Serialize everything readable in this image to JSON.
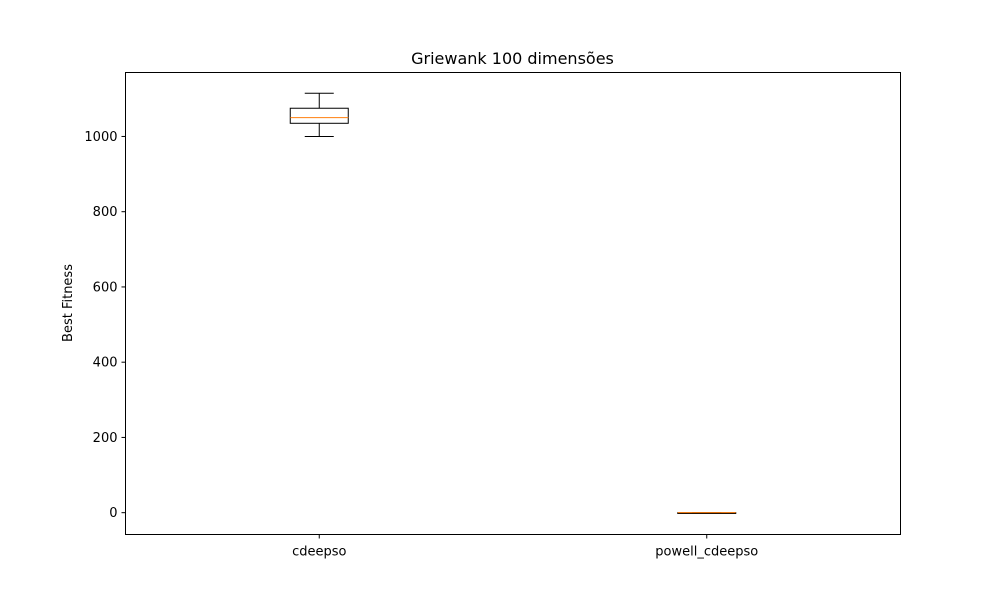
{
  "chart_data": {
    "type": "box",
    "title": "Griewank 100 dimensões",
    "xlabel": "",
    "ylabel": "Best Fitness",
    "ylim": [
      -58,
      1170
    ],
    "yticks": [
      0,
      200,
      400,
      600,
      800,
      1000
    ],
    "grid": false,
    "categories": [
      "cdeepso",
      "powell_cdeepso"
    ],
    "boxes": [
      {
        "category": "cdeepso",
        "whisker_low": 1000,
        "q1": 1035,
        "median": 1050,
        "q3": 1075,
        "whisker_high": 1115
      },
      {
        "category": "powell_cdeepso",
        "whisker_low": 0,
        "q1": 0,
        "median": 0,
        "q3": 0,
        "whisker_high": 0
      }
    ],
    "colors": {
      "box": "#000000",
      "median": "#ff7f0e"
    }
  }
}
